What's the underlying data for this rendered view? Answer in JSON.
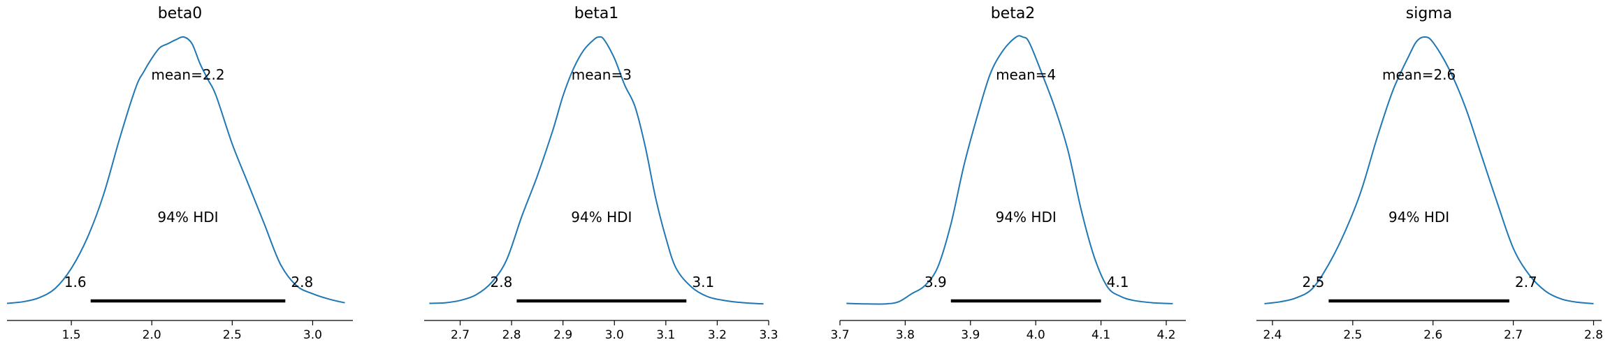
{
  "chart_data": [
    {
      "type": "line",
      "title": "beta0",
      "xlim": [
        1.1,
        3.25
      ],
      "xticks": [
        1.5,
        2.0,
        2.5,
        3.0
      ],
      "tick_labels": [
        "1.5",
        "2.0",
        "2.5",
        "3.0"
      ],
      "density": {
        "x": [
          1.1,
          1.2,
          1.3,
          1.4,
          1.5,
          1.6,
          1.7,
          1.8,
          1.9,
          1.95,
          2.0,
          2.05,
          2.1,
          2.15,
          2.2,
          2.25,
          2.3,
          2.35,
          2.4,
          2.5,
          2.6,
          2.7,
          2.8,
          2.9,
          3.0,
          3.1,
          3.2
        ],
        "y": [
          0.004,
          0.01,
          0.025,
          0.06,
          0.135,
          0.25,
          0.41,
          0.62,
          0.81,
          0.87,
          0.92,
          0.96,
          0.975,
          0.99,
          1.0,
          0.975,
          0.9,
          0.84,
          0.78,
          0.6,
          0.45,
          0.3,
          0.15,
          0.07,
          0.04,
          0.02,
          0.006
        ]
      },
      "mean_label": "mean=2.2",
      "hdi_label": "94% HDI",
      "hdi": [
        1.62,
        2.83
      ],
      "hdi_low_label": "1.6",
      "hdi_high_label": "2.8"
    },
    {
      "type": "line",
      "title": "beta1",
      "xlim": [
        2.63,
        3.3
      ],
      "xticks": [
        2.7,
        2.8,
        2.9,
        3.0,
        3.1,
        3.2,
        3.3
      ],
      "tick_labels": [
        "2.7",
        "2.8",
        "2.9",
        "3.0",
        "3.1",
        "3.2",
        "3.3"
      ],
      "density": {
        "x": [
          2.64,
          2.67,
          2.7,
          2.73,
          2.76,
          2.79,
          2.82,
          2.85,
          2.88,
          2.9,
          2.92,
          2.94,
          2.96,
          2.97,
          2.98,
          3.0,
          3.02,
          3.04,
          3.06,
          3.08,
          3.1,
          3.12,
          3.15,
          3.18,
          3.21,
          3.24,
          3.27,
          3.29
        ],
        "y": [
          0.004,
          0.006,
          0.015,
          0.035,
          0.08,
          0.165,
          0.33,
          0.48,
          0.65,
          0.78,
          0.88,
          0.95,
          0.99,
          1.0,
          0.99,
          0.92,
          0.82,
          0.74,
          0.59,
          0.4,
          0.25,
          0.135,
          0.065,
          0.03,
          0.016,
          0.008,
          0.004,
          0.002
        ]
      },
      "mean_label": "mean=3",
      "hdi_label": "94% HDI",
      "hdi": [
        2.81,
        3.14
      ],
      "hdi_low_label": "2.8",
      "hdi_high_label": "3.1"
    },
    {
      "type": "line",
      "title": "beta2",
      "xlim": [
        3.7,
        4.23
      ],
      "xticks": [
        3.7,
        3.8,
        3.9,
        4.0,
        4.1,
        4.2
      ],
      "tick_labels": [
        "3.7",
        "3.8",
        "3.9",
        "4.0",
        "4.1",
        "4.2"
      ],
      "density": {
        "x": [
          3.71,
          3.74,
          3.77,
          3.79,
          3.81,
          3.83,
          3.85,
          3.87,
          3.89,
          3.91,
          3.93,
          3.95,
          3.97,
          3.98,
          3.99,
          4.01,
          4.03,
          4.05,
          4.07,
          4.09,
          4.11,
          4.13,
          4.15,
          4.18,
          4.21
        ],
        "y": [
          0.004,
          0.002,
          0.002,
          0.01,
          0.04,
          0.07,
          0.14,
          0.3,
          0.52,
          0.7,
          0.86,
          0.95,
          1.0,
          1.0,
          0.98,
          0.86,
          0.73,
          0.57,
          0.35,
          0.175,
          0.065,
          0.03,
          0.015,
          0.006,
          0.003
        ]
      },
      "mean_label": "mean=4",
      "hdi_label": "94% HDI",
      "hdi": [
        3.87,
        4.1
      ],
      "hdi_low_label": "3.9",
      "hdi_high_label": "4.1"
    },
    {
      "type": "line",
      "title": "sigma",
      "xlim": [
        2.38,
        2.81
      ],
      "xticks": [
        2.4,
        2.5,
        2.6,
        2.7,
        2.8
      ],
      "tick_labels": [
        "2.4",
        "2.5",
        "2.6",
        "2.7",
        "2.8"
      ],
      "density": {
        "x": [
          2.39,
          2.41,
          2.43,
          2.45,
          2.47,
          2.49,
          2.51,
          2.53,
          2.55,
          2.57,
          2.58,
          2.59,
          2.6,
          2.62,
          2.64,
          2.66,
          2.68,
          2.7,
          2.72,
          2.74,
          2.76,
          2.78,
          2.8
        ],
        "y": [
          0.003,
          0.01,
          0.025,
          0.06,
          0.15,
          0.27,
          0.42,
          0.62,
          0.8,
          0.93,
          0.985,
          1.0,
          0.98,
          0.88,
          0.74,
          0.56,
          0.38,
          0.21,
          0.11,
          0.05,
          0.02,
          0.008,
          0.003
        ]
      },
      "mean_label": "mean=2.6",
      "hdi_label": "94% HDI",
      "hdi": [
        2.47,
        2.695
      ],
      "hdi_low_label": "2.5",
      "hdi_high_label": "2.7"
    }
  ],
  "colors": {
    "line": "#1f77b4",
    "hdi_bar": "#000000",
    "axis": "#000000"
  }
}
